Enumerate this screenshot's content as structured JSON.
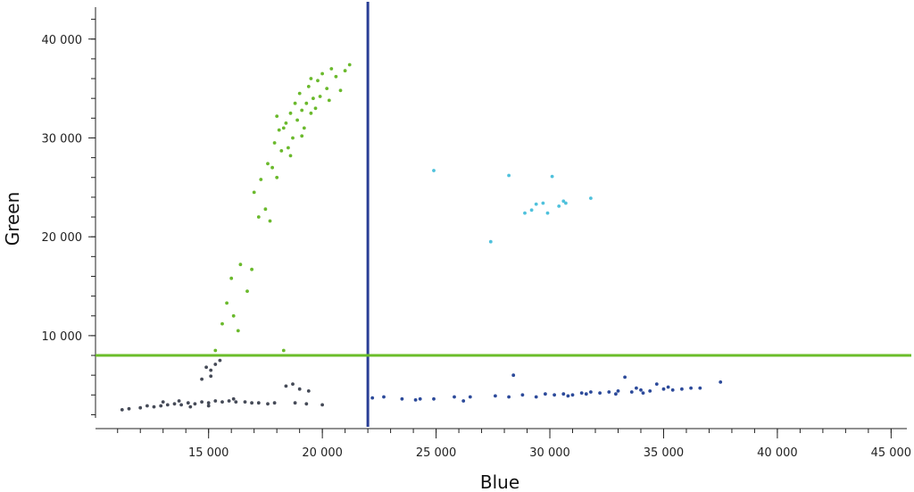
{
  "chart_data": {
    "type": "scatter",
    "title": "",
    "xlabel": "Blue",
    "ylabel": "Green",
    "xlim": [
      10500,
      45300
    ],
    "ylim": [
      1500,
      43500
    ],
    "x_ticks": [
      15000,
      20000,
      25000,
      30000,
      35000,
      40000,
      45000
    ],
    "x_tick_labels": [
      "15 000",
      "20 000",
      "25 000",
      "30 000",
      "35 000",
      "40 000",
      "45 000"
    ],
    "y_ticks": [
      10000,
      20000,
      30000,
      40000
    ],
    "y_tick_labels": [
      "10 000",
      "20 000",
      "30 000",
      "40 000"
    ],
    "thresholds": {
      "vertical": {
        "x": 22000,
        "color": "#2a3f96"
      },
      "horizontal": {
        "y": 8000,
        "color": "#6bbd2a"
      }
    },
    "series": [
      {
        "name": "Green cluster",
        "color": "#6ab92c",
        "points": [
          [
            15300,
            8500
          ],
          [
            15600,
            11200
          ],
          [
            15800,
            13300
          ],
          [
            16000,
            15800
          ],
          [
            16100,
            12000
          ],
          [
            16300,
            10500
          ],
          [
            16400,
            17200
          ],
          [
            16700,
            14500
          ],
          [
            16900,
            16700
          ],
          [
            17000,
            24500
          ],
          [
            17200,
            22000
          ],
          [
            17300,
            25800
          ],
          [
            17500,
            22800
          ],
          [
            17700,
            21600
          ],
          [
            17800,
            27000
          ],
          [
            17900,
            29500
          ],
          [
            18000,
            26000
          ],
          [
            18100,
            30800
          ],
          [
            18200,
            28700
          ],
          [
            18300,
            8500
          ],
          [
            18400,
            31500
          ],
          [
            18500,
            29000
          ],
          [
            18600,
            32500
          ],
          [
            18700,
            30000
          ],
          [
            18800,
            33500
          ],
          [
            18900,
            31800
          ],
          [
            19000,
            34500
          ],
          [
            19100,
            32800
          ],
          [
            19200,
            31000
          ],
          [
            19300,
            33500
          ],
          [
            19400,
            35200
          ],
          [
            19500,
            32500
          ],
          [
            19600,
            34000
          ],
          [
            19700,
            33000
          ],
          [
            19800,
            35800
          ],
          [
            19900,
            34200
          ],
          [
            20000,
            36500
          ],
          [
            20200,
            35000
          ],
          [
            20400,
            37000
          ],
          [
            20600,
            36200
          ],
          [
            20800,
            34800
          ],
          [
            21000,
            36800
          ],
          [
            21200,
            37400
          ],
          [
            18000,
            32200
          ],
          [
            18300,
            31000
          ],
          [
            19100,
            30200
          ],
          [
            18600,
            28200
          ],
          [
            17600,
            27400
          ],
          [
            19500,
            36000
          ],
          [
            20300,
            33800
          ]
        ]
      },
      {
        "name": "Cyan cluster",
        "color": "#4fc1dc",
        "points": [
          [
            24900,
            26700
          ],
          [
            27400,
            19500
          ],
          [
            28200,
            26200
          ],
          [
            28900,
            22400
          ],
          [
            29200,
            22700
          ],
          [
            29400,
            23300
          ],
          [
            29700,
            23400
          ],
          [
            29900,
            22400
          ],
          [
            30100,
            26100
          ],
          [
            30400,
            23100
          ],
          [
            30600,
            23600
          ],
          [
            30700,
            23400
          ],
          [
            31800,
            23900
          ]
        ]
      },
      {
        "name": "Gray cluster",
        "color": "#454a57",
        "points": [
          [
            11200,
            2500
          ],
          [
            11500,
            2600
          ],
          [
            12000,
            2700
          ],
          [
            12300,
            2900
          ],
          [
            12600,
            2800
          ],
          [
            12900,
            2900
          ],
          [
            13200,
            3000
          ],
          [
            13500,
            3100
          ],
          [
            13800,
            3000
          ],
          [
            14100,
            3200
          ],
          [
            14400,
            3100
          ],
          [
            14700,
            3300
          ],
          [
            15000,
            3200
          ],
          [
            15300,
            3400
          ],
          [
            15600,
            3300
          ],
          [
            15900,
            3400
          ],
          [
            16200,
            3300
          ],
          [
            16600,
            3300
          ],
          [
            16900,
            3200
          ],
          [
            17200,
            3200
          ],
          [
            17600,
            3100
          ],
          [
            17900,
            3200
          ],
          [
            14900,
            6800
          ],
          [
            15100,
            6500
          ],
          [
            15300,
            7100
          ],
          [
            15500,
            7500
          ],
          [
            14700,
            5600
          ],
          [
            15100,
            5900
          ],
          [
            18400,
            4900
          ],
          [
            18700,
            5100
          ],
          [
            19000,
            4600
          ],
          [
            19400,
            4400
          ],
          [
            18800,
            3200
          ],
          [
            19300,
            3100
          ],
          [
            20000,
            3000
          ],
          [
            15000,
            2900
          ],
          [
            14200,
            2800
          ],
          [
            13700,
            3400
          ],
          [
            13000,
            3300
          ],
          [
            16100,
            3600
          ]
        ]
      },
      {
        "name": "Blue cluster",
        "color": "#2c4a9a",
        "points": [
          [
            22200,
            3700
          ],
          [
            22700,
            3800
          ],
          [
            23500,
            3600
          ],
          [
            24100,
            3500
          ],
          [
            24300,
            3600
          ],
          [
            24900,
            3600
          ],
          [
            25800,
            3800
          ],
          [
            26200,
            3400
          ],
          [
            26500,
            3800
          ],
          [
            27600,
            3900
          ],
          [
            28200,
            3800
          ],
          [
            28400,
            6000
          ],
          [
            28800,
            4000
          ],
          [
            29400,
            3800
          ],
          [
            29800,
            4100
          ],
          [
            30200,
            4000
          ],
          [
            30600,
            4100
          ],
          [
            31000,
            4000
          ],
          [
            31400,
            4200
          ],
          [
            31800,
            4300
          ],
          [
            32200,
            4200
          ],
          [
            32600,
            4300
          ],
          [
            33000,
            4400
          ],
          [
            33300,
            5800
          ],
          [
            33600,
            4300
          ],
          [
            34000,
            4500
          ],
          [
            34400,
            4400
          ],
          [
            34700,
            5100
          ],
          [
            35000,
            4600
          ],
          [
            35400,
            4500
          ],
          [
            35800,
            4600
          ],
          [
            36200,
            4700
          ],
          [
            36600,
            4700
          ],
          [
            37500,
            5300
          ],
          [
            33800,
            4700
          ],
          [
            32900,
            4100
          ],
          [
            35200,
            4800
          ],
          [
            34100,
            4200
          ],
          [
            31600,
            4100
          ],
          [
            30800,
            3900
          ]
        ]
      }
    ]
  }
}
